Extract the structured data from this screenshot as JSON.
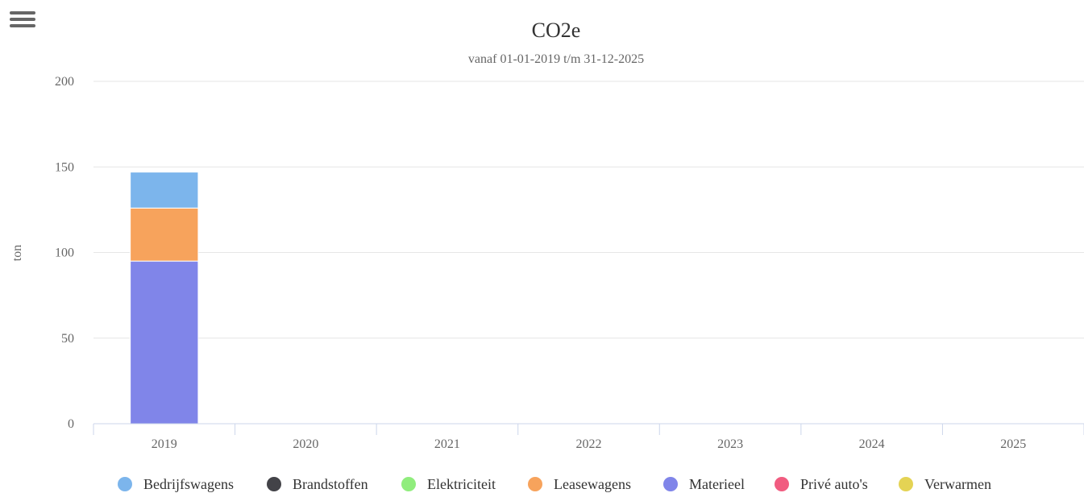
{
  "menu": {
    "icon": "hamburger-menu-icon"
  },
  "chart_data": {
    "type": "bar",
    "stacked": true,
    "title": "CO2e",
    "subtitle": "vanaf 01-01-2019 t/m 31-12-2025",
    "ylabel": "ton",
    "ylim": [
      0,
      200
    ],
    "yticks": [
      0,
      50,
      100,
      150,
      200
    ],
    "categories": [
      "2019",
      "2020",
      "2021",
      "2022",
      "2023",
      "2024",
      "2025"
    ],
    "grid": true,
    "legend_position": "bottom",
    "series": [
      {
        "name": "Bedrijfswagens",
        "color": "#7cb5ec",
        "values": [
          21,
          0,
          0,
          0,
          0,
          0,
          0
        ]
      },
      {
        "name": "Brandstoffen",
        "color": "#434348",
        "values": [
          0,
          0,
          0,
          0,
          0,
          0,
          0
        ]
      },
      {
        "name": "Elektriciteit",
        "color": "#90ed7d",
        "values": [
          0,
          0,
          0,
          0,
          0,
          0,
          0
        ]
      },
      {
        "name": "Leasewagens",
        "color": "#f7a35c",
        "values": [
          31,
          0,
          0,
          0,
          0,
          0,
          0
        ]
      },
      {
        "name": "Materieel",
        "color": "#8085e9",
        "values": [
          95,
          0,
          0,
          0,
          0,
          0,
          0
        ]
      },
      {
        "name": "Privé auto's",
        "color": "#f15c80",
        "values": [
          0,
          0,
          0,
          0,
          0,
          0,
          0
        ]
      },
      {
        "name": "Verwarmen",
        "color": "#e4d354",
        "values": [
          0,
          0,
          0,
          0,
          0,
          0,
          0
        ]
      }
    ],
    "stack_order": [
      "Materieel",
      "Leasewagens",
      "Bedrijfswagens",
      "Brandstoffen",
      "Elektriciteit",
      "Privé auto's",
      "Verwarmen"
    ]
  }
}
